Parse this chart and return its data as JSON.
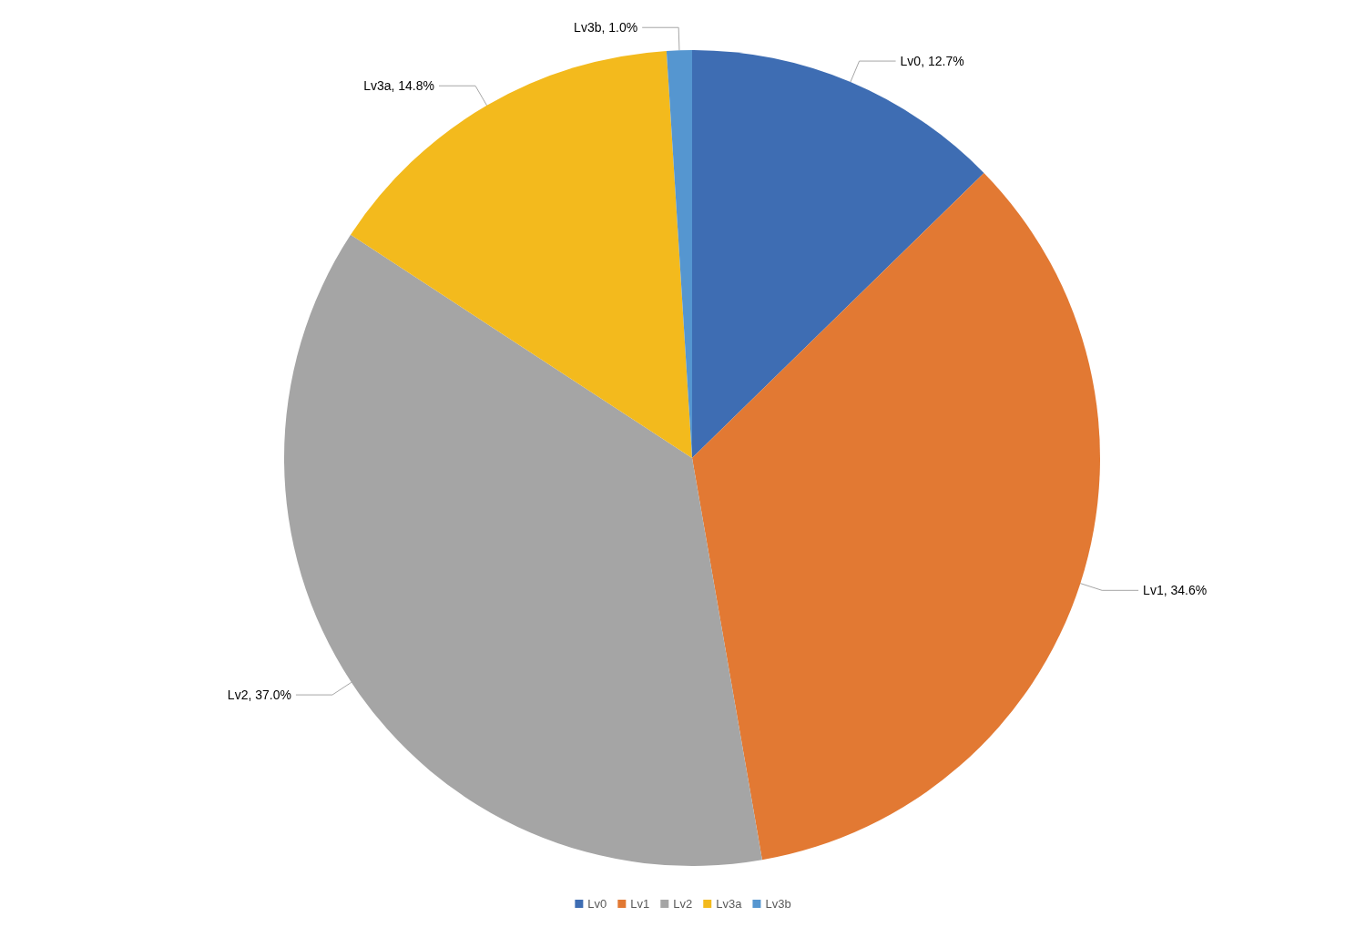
{
  "chart_data": {
    "type": "pie",
    "categories": [
      "Lv0",
      "Lv1",
      "Lv2",
      "Lv3a",
      "Lv3b"
    ],
    "values": [
      12.7,
      34.6,
      37.0,
      14.8,
      1.0
    ],
    "value_labels": [
      "Lv0, 12.7%",
      "Lv1, 34.6%",
      "Lv2, 37.0%",
      "Lv3a, 14.8%",
      "Lv3b, 1.0%"
    ],
    "colors": [
      "#3e6db3",
      "#e27933",
      "#a5a5a5",
      "#f3ba1d",
      "#5596d0"
    ],
    "legend": "bottom"
  }
}
